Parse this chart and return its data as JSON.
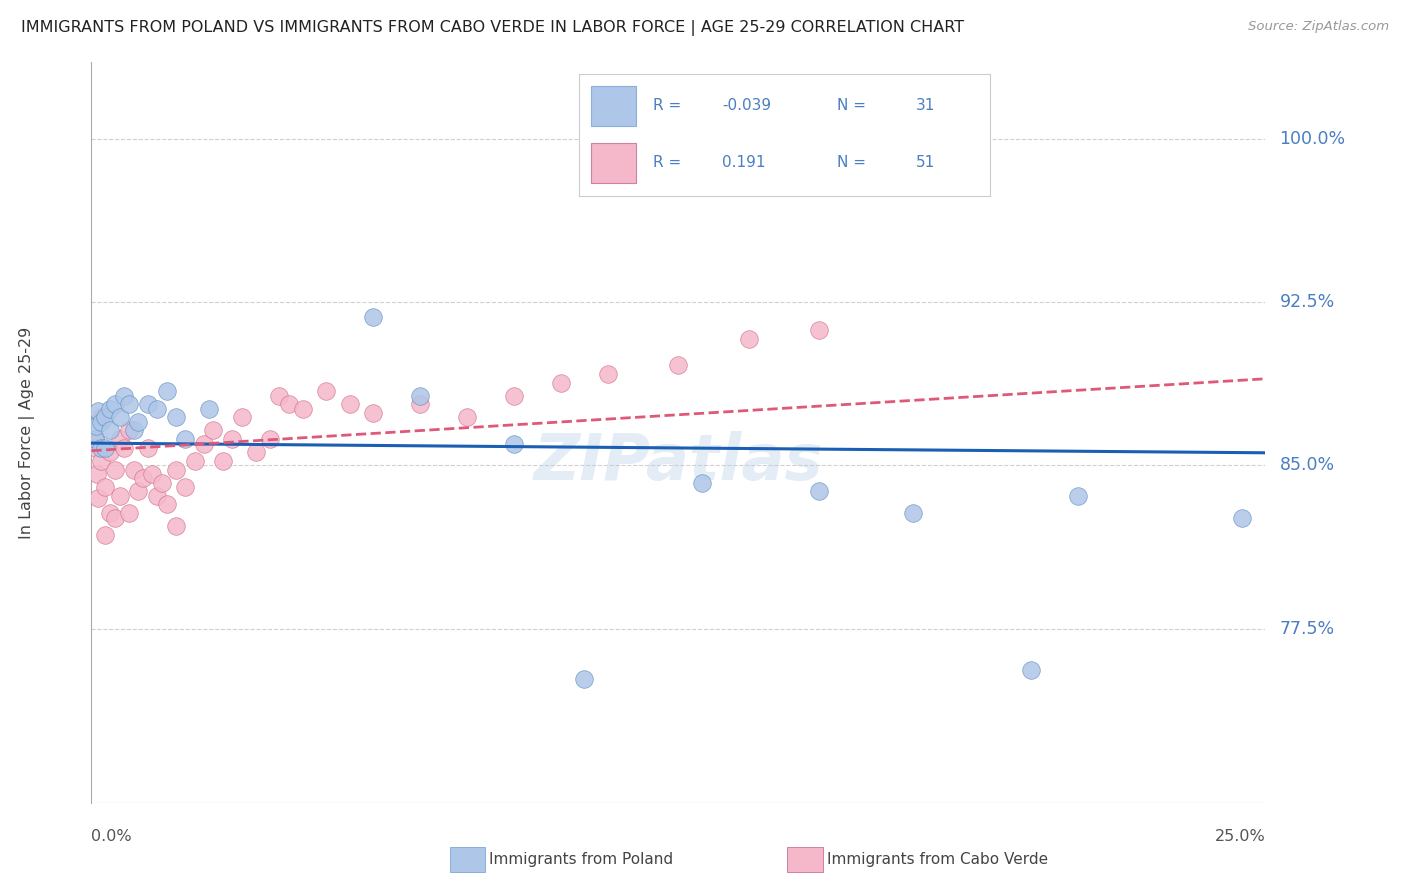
{
  "title": "IMMIGRANTS FROM POLAND VS IMMIGRANTS FROM CABO VERDE IN LABOR FORCE | AGE 25-29 CORRELATION CHART",
  "source": "Source: ZipAtlas.com",
  "ylabel": "In Labor Force | Age 25-29",
  "r_poland": -0.039,
  "n_poland": 31,
  "r_caboverde": 0.191,
  "n_caboverde": 51,
  "color_poland": "#aec6e8",
  "color_caboverde": "#f5b8cb",
  "trend_poland_color": "#1a5fb4",
  "trend_caboverde_color": "#e05878",
  "text_color_blue": "#4a7fc1",
  "text_color_dark": "#555555",
  "xlim": [
    0.0,
    0.25
  ],
  "ylim": [
    0.695,
    1.035
  ],
  "yticks": [
    0.775,
    0.85,
    0.925,
    1.0
  ],
  "ytick_labels": [
    "77.5%",
    "85.0%",
    "92.5%",
    "100.0%"
  ],
  "watermark": "ZIPatlas",
  "poland_x": [
    0.0008,
    0.001,
    0.0015,
    0.002,
    0.002,
    0.003,
    0.003,
    0.004,
    0.004,
    0.005,
    0.006,
    0.007,
    0.008,
    0.009,
    0.01,
    0.012,
    0.014,
    0.016,
    0.018,
    0.02,
    0.025,
    0.06,
    0.07,
    0.09,
    0.105,
    0.13,
    0.155,
    0.175,
    0.2,
    0.21,
    0.245
  ],
  "poland_y": [
    0.862,
    0.868,
    0.875,
    0.87,
    0.858,
    0.872,
    0.858,
    0.876,
    0.866,
    0.878,
    0.872,
    0.882,
    0.878,
    0.866,
    0.87,
    0.878,
    0.876,
    0.884,
    0.872,
    0.862,
    0.876,
    0.918,
    0.882,
    0.86,
    0.752,
    0.842,
    0.838,
    0.828,
    0.756,
    0.836,
    0.826
  ],
  "caboverde_x": [
    0.0008,
    0.001,
    0.0012,
    0.0015,
    0.002,
    0.002,
    0.003,
    0.003,
    0.004,
    0.004,
    0.005,
    0.005,
    0.006,
    0.006,
    0.007,
    0.008,
    0.008,
    0.009,
    0.01,
    0.011,
    0.012,
    0.013,
    0.014,
    0.015,
    0.016,
    0.018,
    0.018,
    0.02,
    0.022,
    0.024,
    0.026,
    0.028,
    0.03,
    0.032,
    0.035,
    0.038,
    0.04,
    0.042,
    0.045,
    0.05,
    0.055,
    0.06,
    0.07,
    0.08,
    0.09,
    0.1,
    0.11,
    0.125,
    0.14,
    0.155,
    0.165
  ],
  "caboverde_y": [
    0.862,
    0.858,
    0.846,
    0.835,
    0.872,
    0.852,
    0.84,
    0.818,
    0.856,
    0.828,
    0.848,
    0.826,
    0.862,
    0.836,
    0.858,
    0.866,
    0.828,
    0.848,
    0.838,
    0.844,
    0.858,
    0.846,
    0.836,
    0.842,
    0.832,
    0.848,
    0.822,
    0.84,
    0.852,
    0.86,
    0.866,
    0.852,
    0.862,
    0.872,
    0.856,
    0.862,
    0.882,
    0.878,
    0.876,
    0.884,
    0.878,
    0.874,
    0.878,
    0.872,
    0.882,
    0.888,
    0.892,
    0.896,
    0.908,
    0.912,
    1.0
  ],
  "grid_color": "#d0d0d0",
  "background_color": "#ffffff"
}
